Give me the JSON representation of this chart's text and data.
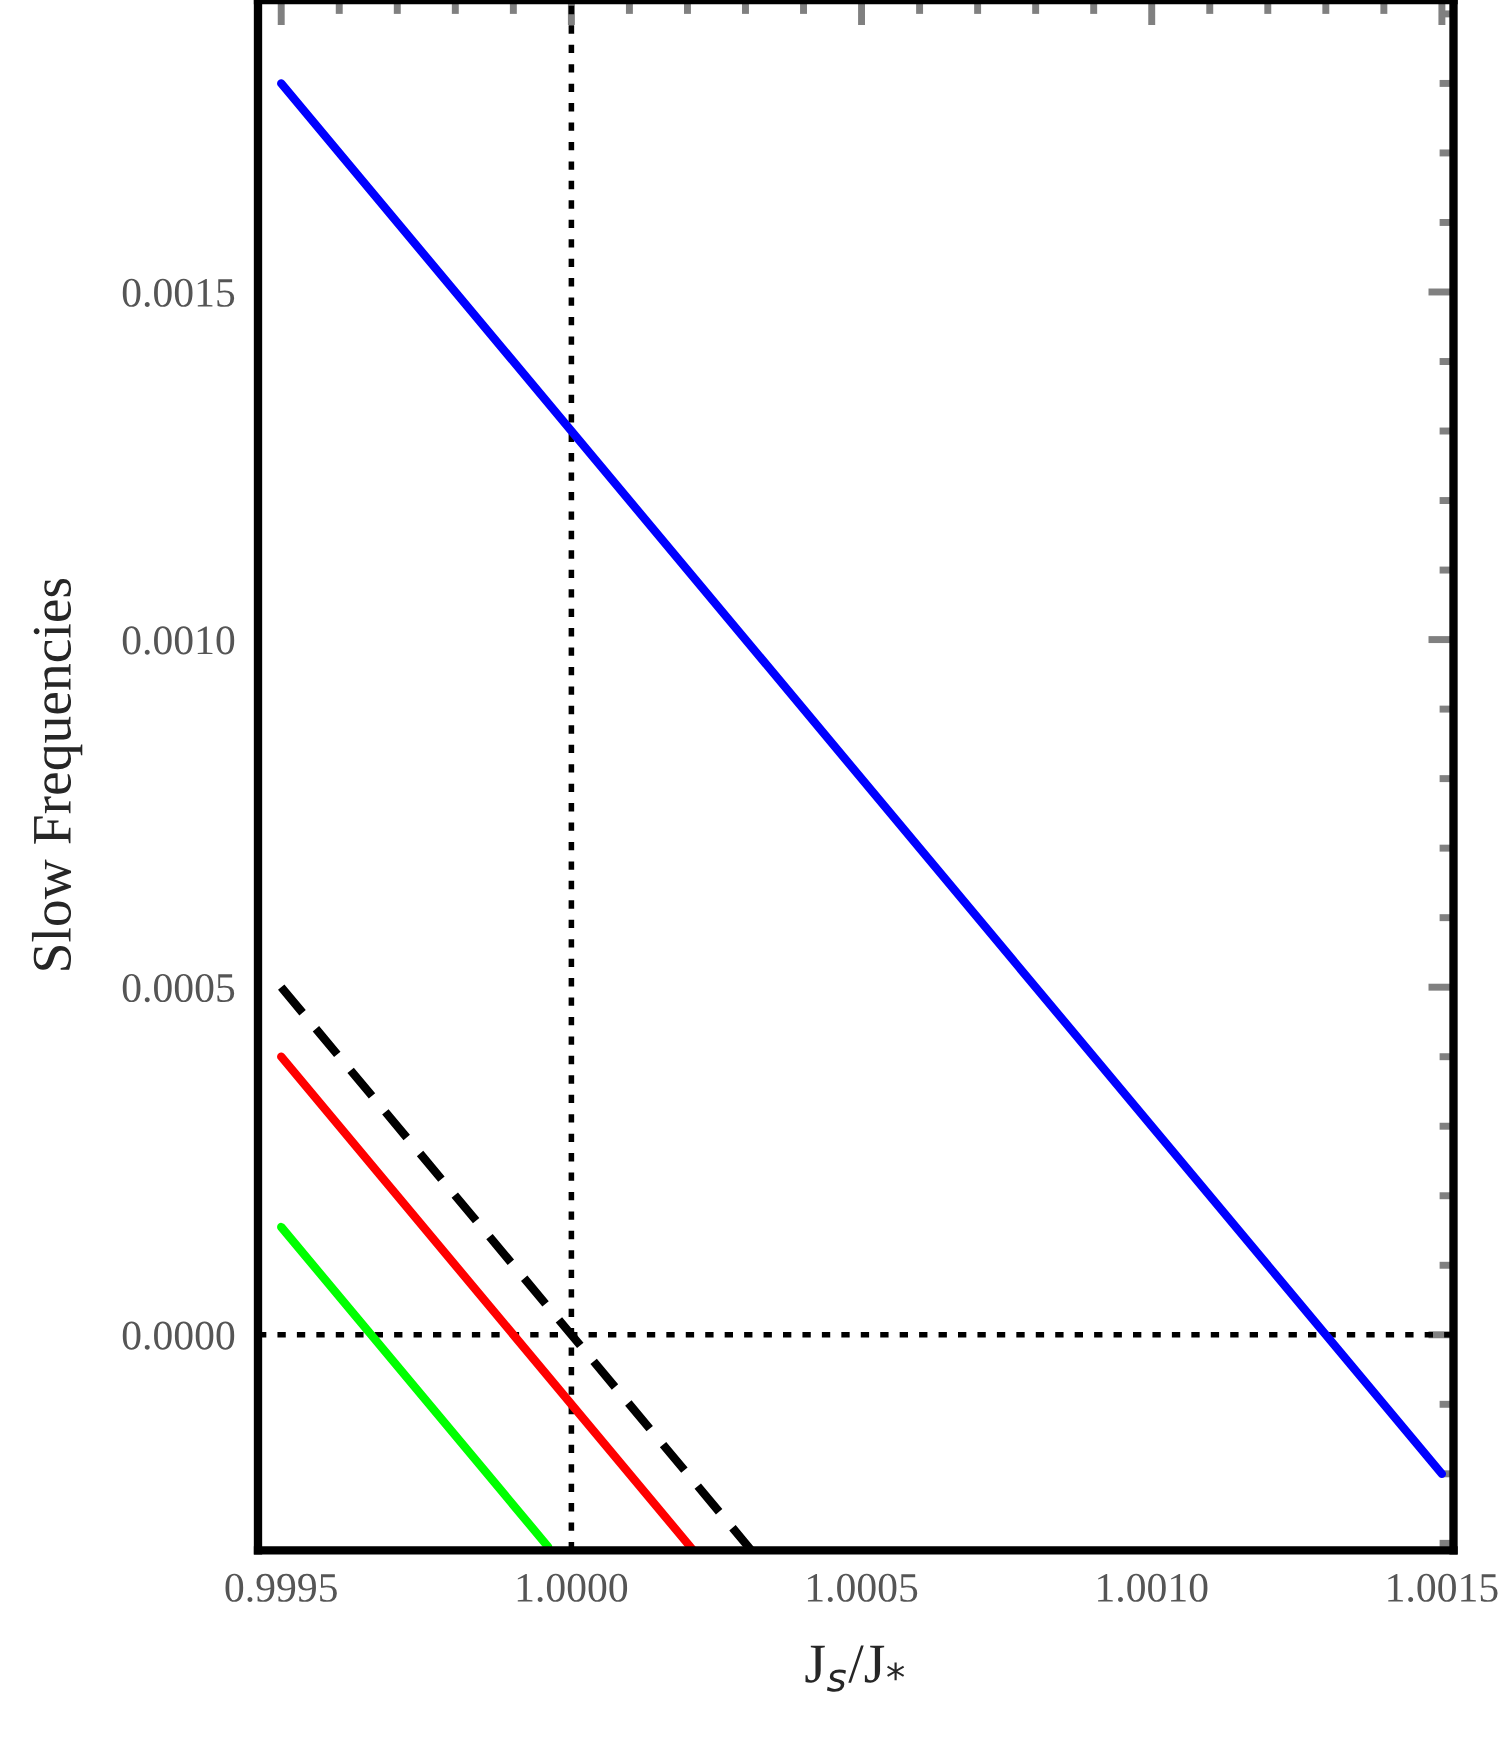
{
  "chart_data": {
    "type": "line",
    "xlabel": "J$_{s}$/J$_{*}$",
    "ylabel": "Slow Frequencies",
    "xlim": [
      0.99946,
      1.00152
    ],
    "ylim": [
      -0.00031,
      0.00192
    ],
    "xticks": [
      {
        "value": 0.9995,
        "label": "0.9995"
      },
      {
        "value": 1.0,
        "label": "1.0000"
      },
      {
        "value": 1.0005,
        "label": "1.0005"
      },
      {
        "value": 1.001,
        "label": "1.0010"
      },
      {
        "value": 1.0015,
        "label": "1.0015"
      }
    ],
    "yticks": [
      {
        "value": 0.0,
        "label": "0.0000"
      },
      {
        "value": 0.0005,
        "label": "0.0005"
      },
      {
        "value": 0.001,
        "label": "0.0010"
      },
      {
        "value": 0.0015,
        "label": "0.0015"
      }
    ],
    "series": [
      {
        "color": "#0000ff",
        "x": [
          0.9995,
          1.0015
        ],
        "values": [
          0.0018,
          -0.0002
        ],
        "line_style": "solid"
      },
      {
        "color": "#000000",
        "x": [
          0.9995,
          1.00031
        ],
        "values": [
          0.0005,
          -0.00031
        ],
        "line_style": "dashed"
      },
      {
        "color": "#ff0000",
        "x": [
          0.9995,
          1.00021
        ],
        "values": [
          0.0004,
          -0.00031
        ],
        "line_style": "solid"
      },
      {
        "color": "#00ff00",
        "x": [
          0.9995,
          0.99996
        ],
        "values": [
          0.000155,
          -0.000305
        ],
        "line_style": "solid"
      }
    ],
    "ref_lines": [
      {
        "axis": "x",
        "value": 1.0,
        "color": "#000000",
        "line_style": "dotted"
      },
      {
        "axis": "y",
        "value": 0.0,
        "color": "#000000",
        "line_style": "dotted"
      }
    ],
    "grid": false,
    "legend": false,
    "marker": "none"
  }
}
